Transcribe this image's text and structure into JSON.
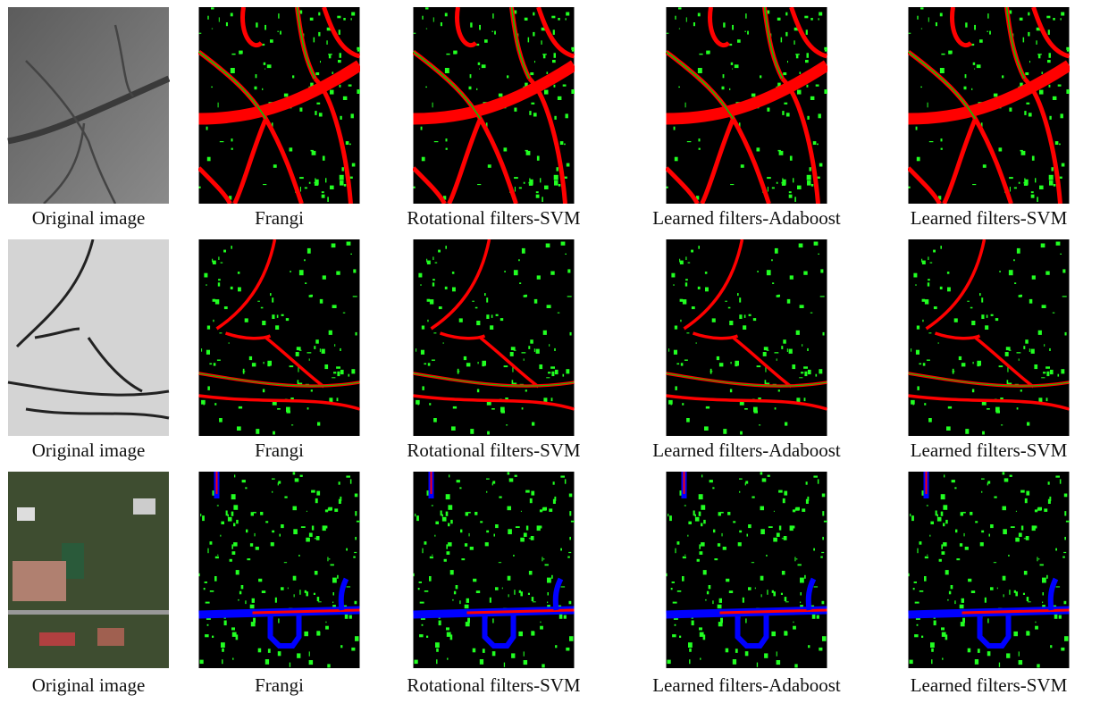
{
  "figure": {
    "rows": [
      {
        "captions": [
          "Original image",
          "Frangi",
          "Rotational filters-SVM",
          "Learned filters-Adaboost",
          "Learned filters-SVM"
        ]
      },
      {
        "captions": [
          "Original image",
          "Frangi",
          "Rotational filters-SVM",
          "Learned filters-Adaboost",
          "Learned filters-SVM"
        ]
      },
      {
        "captions": [
          "Original image",
          "Frangi",
          "Rotational filters-SVM",
          "Learned filters-Adaboost",
          "Learned filters-SVM"
        ]
      }
    ]
  }
}
